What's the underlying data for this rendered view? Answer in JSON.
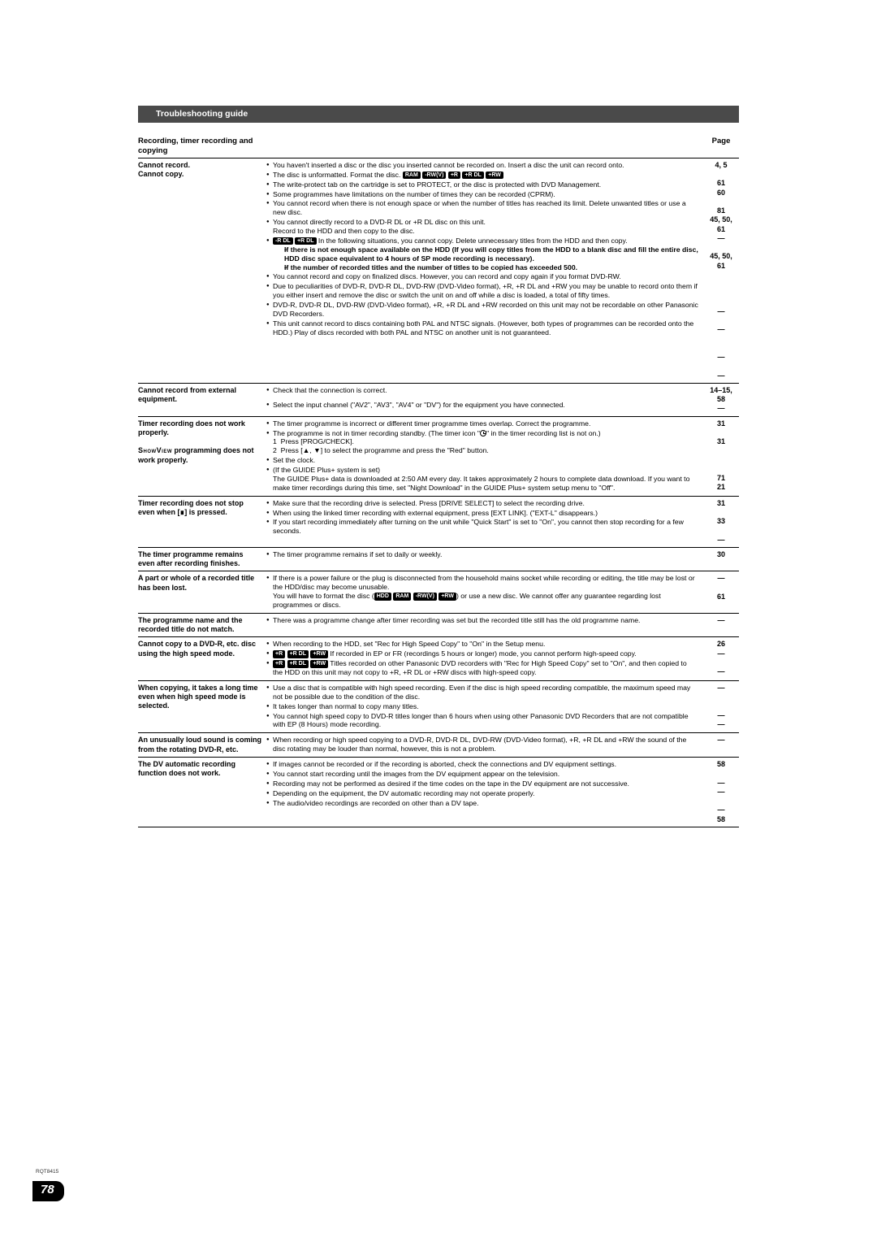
{
  "header": {
    "title": "Troubleshooting guide"
  },
  "section": {
    "left": "Recording, timer recording and copying",
    "right": "Page"
  },
  "rows": [
    {
      "issue_html": "Cannot record.<br>Cannot copy.",
      "cause_html": "<ul class='b'><li>You haven't inserted a disc or the disc you inserted cannot be recorded on. Insert a disc the unit can record onto.</li><li>The disc is unformatted. Format the disc. <span class='badge'>RAM</span> <span class='badge'>-RW(V)</span> <span class='badge'>+R</span> <span class='badge'>+R DL</span> <span class='badge'>+RW</span></li><li>The write-protect tab on the cartridge is set to PROTECT, or the disc is protected with DVD Management.</li><li>Some programmes have limitations on the number of times they can be recorded (CPRM).</li><li>You cannot record when there is not enough space or when the number of titles has reached its limit. Delete unwanted titles or use a new disc.</li><li>You cannot directly record to a DVD-R DL or +R DL disc on this unit.<br>Record to the HDD and then copy to the disc.</li><li><span class='badge'>-R DL</span> <span class='badge'>+R DL</span> In the following situations, you cannot copy. Delete unnecessary titles from the HDD and then copy.<div class='sub dash'>If there is not enough space available on the HDD (If you will copy titles from the HDD to a blank disc and fill the entire disc, HDD disc space equivalent to 4 hours of SP mode recording is necessary).</div><div class='sub dash'>If the number of recorded titles and the number of titles to be copied has exceeded 500.</div></li><li>You cannot record and copy on finalized discs. However, you can record and copy again if you format DVD-RW.</li><li>Due to peculiarities of DVD-R, DVD-R DL, DVD-RW (DVD-Video format), +R, +R DL and +RW you may be unable to record onto them if you either insert and remove the disc or switch the unit on and off while a disc is loaded, a total of fifty times.</li><li>DVD-R, DVD-R DL, DVD-RW (DVD-Video format), +R, +R DL and +RW recorded on this unit may not be recordable on other Panasonic DVD Recorders.</li><li>This unit cannot record to discs containing both PAL and NTSC signals. (However, both types of programmes can be recorded onto the HDD.) Play of discs recorded with both PAL and NTSC on another unit is not guaranteed.</li></ul>",
      "page": "4, 5\n\n61\n60\n\n81\n45, 50,\n61\n—\n\n45, 50,\n61\n\n\n\n\n—\n\n—\n\n\n—\n\n—"
    },
    {
      "issue_html": "Cannot record from external equipment.",
      "cause_html": "<ul class='b'><li>Check that the connection is correct.</li></ul><div style='height:6px'></div><ul class='b'><li>Select the input channel (\"AV2\", \"AV3\", \"AV4\" or \"DV\") for the equipment you have connected.</li></ul>",
      "page": "14–15,\n58\n—"
    },
    {
      "issue_html": "Timer recording does not work properly.<br><br><span class='smallcaps'>ShowView</span> programming does not work properly.",
      "cause_html": "<ul class='b'><li>The timer programme is incorrect or different timer programme times overlap. Correct the programme.</li><li>The programme is not in timer recording standby. (The timer icon \"<span class='clock'></span>\" in the timer recording list is not on.)<br>1&nbsp;&nbsp;Press [PROG/CHECK].<br>2&nbsp;&nbsp;Press [▲, ▼] to select the programme and press the \"Red\" button.</li><li>Set the clock.</li><li>(If the GUIDE Plus+ system is set)<br>The GUIDE Plus+ data is downloaded at 2:50 AM every day. It takes approximately 2 hours to complete data download. If you want to make timer recordings during this time, set \"Night Download\" in the GUIDE Plus+ system setup menu to \"Off\".</li></ul>",
      "page": "31\n\n31\n\n\n\n71\n21"
    },
    {
      "issue_html": "Timer recording does not stop even when [∎] is pressed.",
      "cause_html": "<ul class='b'><li>Make sure that the recording drive is selected. Press [DRIVE SELECT] to select the recording drive.</li><li>When using the linked timer recording with external equipment, press [EXT LINK]. (\"EXT-L\" disappears.)</li><li>If you start recording immediately after turning on the unit while \"Quick Start\" is set to \"On\", you cannot then stop recording for a few seconds.</li></ul>",
      "page": "31\n\n33\n\n—"
    },
    {
      "issue_html": "The timer programme remains even after recording finishes.",
      "cause_html": "<ul class='b'><li>The timer programme remains if set to daily or weekly.</li></ul>",
      "page": "30"
    },
    {
      "issue_html": "A part or whole of a recorded title has been lost.",
      "cause_html": "<ul class='b'><li>If there is a power failure or the plug is disconnected from the household mains socket while recording or editing, the title may be lost or the HDD/disc may become unusable.<br>You will have to format the disc (<span class='badge'>HDD</span> <span class='badge'>RAM</span> <span class='badge'>-RW(V)</span> <span class='badge'>+RW</span>) or use a new disc. We cannot offer any guarantee regarding lost programmes or discs.</li></ul>",
      "page": "—\n\n61"
    },
    {
      "issue_html": "The programme name and the recorded title do not match.",
      "cause_html": "<ul class='b'><li>There was a programme change after timer recording was set but the recorded title still has the old programme name.</li></ul>",
      "page": "—"
    },
    {
      "issue_html": "Cannot copy to a DVD-R, etc. disc using the high speed mode.",
      "cause_html": "<ul class='b'><li>When recording to the HDD, set \"Rec for High Speed Copy\" to \"On\" in the Setup menu.</li><li><span class='badge'>+R</span> <span class='badge'>+R DL</span> <span class='badge'>+RW</span> If recorded in EP or FR (recordings 5 hours or longer) mode, you cannot perform high-speed copy.</li><li><span class='badge'>+R</span> <span class='badge'>+R DL</span> <span class='badge'>+RW</span> Titles recorded on other Panasonic DVD recorders with \"Rec for High Speed Copy\" set to \"On\", and then copied to the HDD on this unit may not copy to +R, +R DL or +RW discs with high-speed copy.</li></ul>",
      "page": "26\n—\n\n—"
    },
    {
      "issue_html": "When copying, it takes a long time even when high speed mode is selected.",
      "cause_html": "<ul class='b'><li>Use a disc that is compatible with high speed recording. Even if the disc is high speed recording compatible, the maximum speed may not be possible due to the condition of the disc.</li><li>It takes longer than normal to copy many titles.</li><li>You cannot high speed copy to DVD-R titles longer than 6 hours when using other Panasonic DVD Recorders that are not compatible with EP (8 Hours) mode recording.</li></ul>",
      "page": "—\n\n\n—\n—"
    },
    {
      "issue_html": "An unusually loud sound is coming from the rotating DVD-R, etc.",
      "cause_html": "<ul class='b'><li>When recording or high speed copying to a DVD-R, DVD-R DL, DVD-RW (DVD-Video format), +R, +R DL and +RW the sound of the disc rotating may be louder than normal, however, this is not a problem.</li></ul>",
      "page": "—"
    },
    {
      "issue_html": "The DV automatic recording function does not work.",
      "cause_html": "<ul class='b'><li>If images cannot be recorded or if the recording is aborted, check the connections and DV equipment settings.</li><li>You cannot start recording until the images from the DV equipment appear on the television.</li><li>Recording may not be performed as desired if the time codes on the tape in the DV equipment are not successive.</li><li>Depending on the equipment, the DV automatic recording may not operate properly.</li><li>The audio/video recordings are recorded on other than a DV tape.</li></ul>",
      "page": "58\n\n—\n—\n\n—\n58"
    }
  ],
  "footer": {
    "code": "RQT8415",
    "page_number": "78"
  }
}
